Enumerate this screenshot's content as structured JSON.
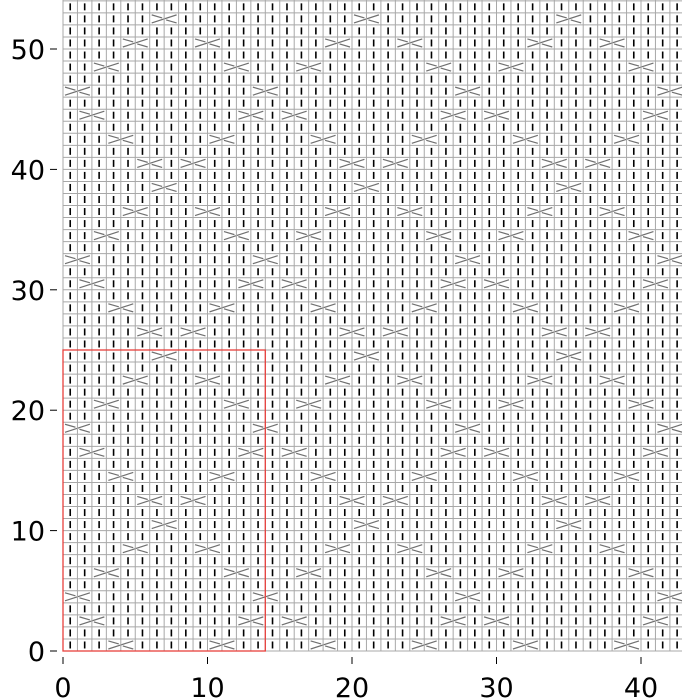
{
  "chart_data": {
    "type": "knitting-chart",
    "xlim": [
      0,
      43
    ],
    "ylim": [
      0,
      54
    ],
    "x_ticks": [
      "0",
      "10",
      "20",
      "30",
      "40"
    ],
    "y_ticks": [
      "0",
      "10",
      "20",
      "30",
      "40",
      "50"
    ],
    "symbols": {
      "purl": "vertical-bar",
      "cable": "cross"
    },
    "repeat_box": {
      "x": [
        0,
        14
      ],
      "y": [
        0,
        25
      ],
      "color": "#e8403c"
    },
    "grid_color": "#a8a8a8",
    "cable_color": "#707070",
    "grid": true
  }
}
